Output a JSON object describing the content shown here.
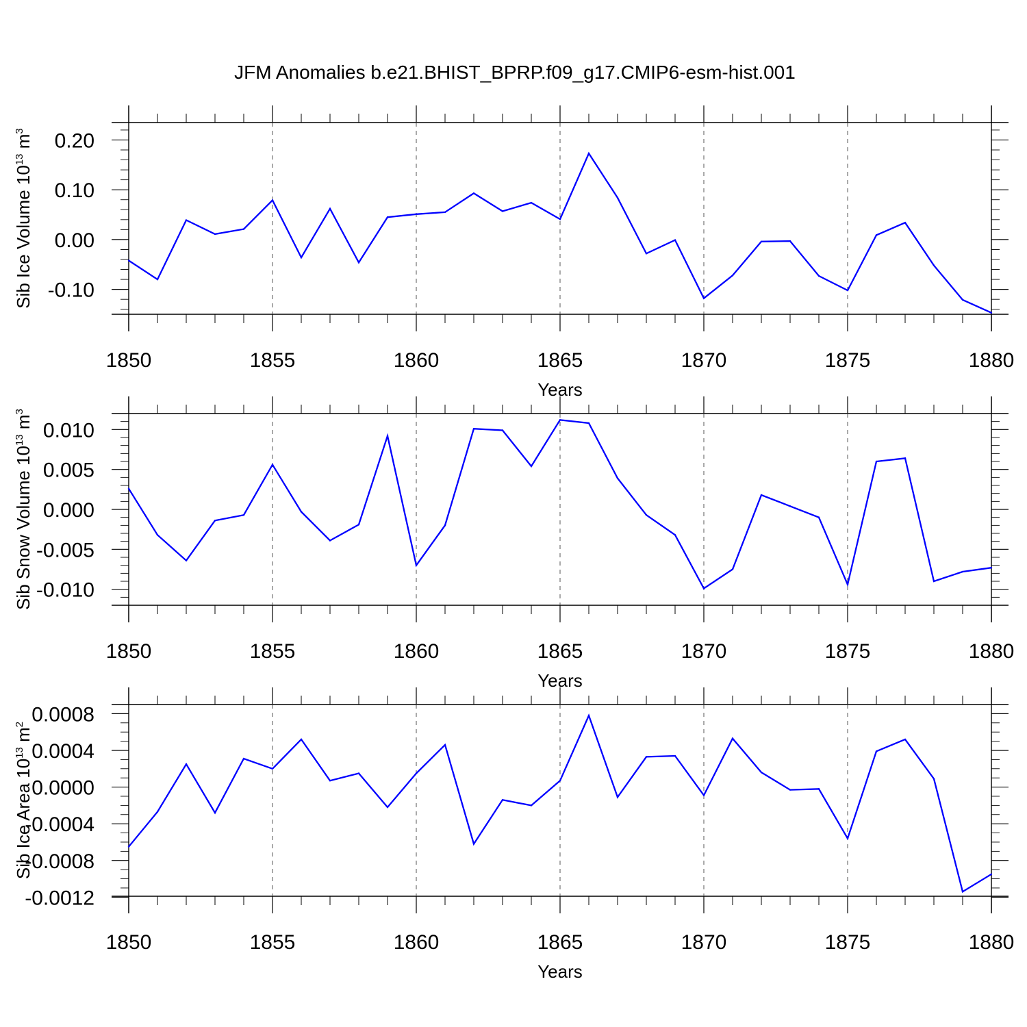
{
  "title": "JFM Anomalies b.e21.BHIST_BPRP.f09_g17.CMIP6-esm-hist.001",
  "colors": {
    "line": "#0000ff",
    "frame": "#000000",
    "grid": "#555555",
    "background": "#ffffff"
  },
  "chart_data": [
    {
      "type": "line",
      "ylabel_main": "Sib Ice Volume 10",
      "ylabel_sup1": "13",
      "ylabel_mid": " m",
      "ylabel_sup2": "3",
      "xlabel": "Years",
      "xlim": [
        1850,
        1880
      ],
      "ylim": [
        -0.15,
        0.235
      ],
      "xticks": [
        1850,
        1855,
        1860,
        1865,
        1870,
        1875,
        1880
      ],
      "yticks": [
        -0.1,
        0.0,
        0.1,
        0.2
      ],
      "ytick_labels": [
        "-0.10",
        "0.00",
        "0.10",
        "0.20"
      ],
      "yminor_step": 0.02,
      "grid": "dashed vertical at major x ticks",
      "series": [
        {
          "x": [
            1850,
            1851,
            1852,
            1853,
            1854,
            1855,
            1856,
            1857,
            1858,
            1859,
            1860,
            1861,
            1862,
            1863,
            1864,
            1865,
            1866,
            1867,
            1868,
            1869,
            1870,
            1871,
            1872,
            1873,
            1874,
            1875,
            1876,
            1877,
            1878,
            1879,
            1880
          ],
          "values": [
            -0.042,
            -0.08,
            0.039,
            0.011,
            0.021,
            0.079,
            -0.036,
            0.062,
            -0.046,
            0.045,
            0.051,
            0.055,
            0.093,
            0.057,
            0.074,
            0.041,
            0.173,
            0.084,
            -0.028,
            -0.001,
            -0.118,
            -0.072,
            -0.004,
            -0.003,
            -0.073,
            -0.102,
            0.009,
            0.034,
            -0.052,
            -0.121,
            -0.147
          ]
        }
      ]
    },
    {
      "type": "line",
      "ylabel_main": "Sib Snow Volume 10",
      "ylabel_sup1": "13",
      "ylabel_mid": " m",
      "ylabel_sup2": "3",
      "xlabel": "Years",
      "xlim": [
        1850,
        1880
      ],
      "ylim": [
        -0.012,
        0.012
      ],
      "xticks": [
        1850,
        1855,
        1860,
        1865,
        1870,
        1875,
        1880
      ],
      "yticks": [
        -0.01,
        -0.005,
        0.0,
        0.005,
        0.01
      ],
      "ytick_labels": [
        "-0.010",
        "-0.005",
        "0.000",
        "0.005",
        "0.010"
      ],
      "yminor_step": 0.001,
      "grid": "dashed vertical at major x ticks",
      "series": [
        {
          "x": [
            1850,
            1851,
            1852,
            1853,
            1854,
            1855,
            1856,
            1857,
            1858,
            1859,
            1860,
            1861,
            1862,
            1863,
            1864,
            1865,
            1866,
            1867,
            1868,
            1869,
            1870,
            1871,
            1872,
            1873,
            1874,
            1875,
            1876,
            1877,
            1878,
            1879,
            1880
          ],
          "values": [
            0.0026,
            -0.0032,
            -0.0064,
            -0.0014,
            -0.0007,
            0.0056,
            -0.0003,
            -0.0039,
            -0.0019,
            0.0092,
            -0.007,
            -0.002,
            0.0101,
            0.0099,
            0.0054,
            0.0112,
            0.0108,
            0.0039,
            -0.0007,
            -0.0032,
            -0.0099,
            -0.0075,
            0.0018,
            0.0004,
            -0.001,
            -0.0094,
            0.006,
            0.0064,
            -0.009,
            -0.0078,
            -0.0073
          ]
        }
      ]
    },
    {
      "type": "line",
      "ylabel_main": "Sib Ice Area 10",
      "ylabel_sup1": "13",
      "ylabel_mid": " m",
      "ylabel_sup2": "2",
      "xlabel": "Years",
      "xlim": [
        1850,
        1880
      ],
      "ylim": [
        -0.00119,
        0.0009
      ],
      "xticks": [
        1850,
        1855,
        1860,
        1865,
        1870,
        1875,
        1880
      ],
      "yticks": [
        -0.0012,
        -0.0008,
        -0.0004,
        0.0,
        0.0004,
        0.0008
      ],
      "ytick_labels": [
        "-0.0012",
        "-0.0008",
        "-0.0004",
        "0.0000",
        "0.0004",
        "0.0008"
      ],
      "yminor_step": 0.0001,
      "grid": "dashed vertical at major x ticks",
      "series": [
        {
          "x": [
            1850,
            1851,
            1852,
            1853,
            1854,
            1855,
            1856,
            1857,
            1858,
            1859,
            1860,
            1861,
            1862,
            1863,
            1864,
            1865,
            1866,
            1867,
            1868,
            1869,
            1870,
            1871,
            1872,
            1873,
            1874,
            1875,
            1876,
            1877,
            1878,
            1879,
            1880
          ],
          "values": [
            -0.00065,
            -0.00027,
            0.00025,
            -0.00028,
            0.00031,
            0.0002,
            0.00052,
            7e-05,
            0.00015,
            -0.00022,
            0.00015,
            0.00046,
            -0.00062,
            -0.00014,
            -0.0002,
            7e-05,
            0.00078,
            -0.00011,
            0.00033,
            0.00034,
            -9e-05,
            0.00053,
            0.00016,
            -3e-05,
            -2e-05,
            -0.00056,
            0.00039,
            0.00052,
            9e-05,
            -0.00114,
            -0.00095
          ]
        }
      ]
    }
  ]
}
